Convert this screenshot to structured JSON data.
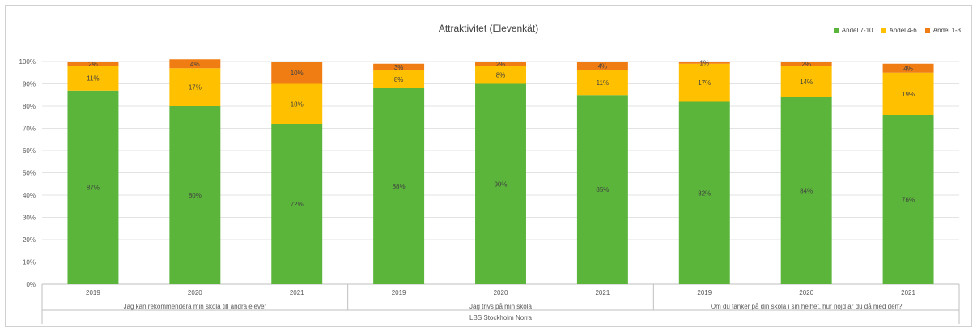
{
  "chart_data": {
    "type": "bar",
    "stacked": true,
    "title": "Attraktivitet (Elevenkät)",
    "xlabel": "",
    "ylabel": "",
    "ylim": [
      0,
      100
    ],
    "yticks": [
      "0%",
      "10%",
      "20%",
      "30%",
      "40%",
      "50%",
      "60%",
      "70%",
      "80%",
      "90%",
      "100%"
    ],
    "grid": true,
    "legend_position": "top-right",
    "categories": [
      "2019",
      "2020",
      "2021",
      "2019",
      "2020",
      "2021",
      "2019",
      "2020",
      "2021"
    ],
    "groups": [
      "Jag kan rekommendera min skola till andra elever",
      "Jag trivs på min skola",
      "Om du tänker på din skola i sin helhet, hur nöjd är du då med den?"
    ],
    "outer_label": "LBS Stockholm Norra",
    "series": [
      {
        "name": "Andel 7-10",
        "color": "#5bb53b",
        "values": [
          87,
          80,
          72,
          88,
          90,
          85,
          82,
          84,
          76
        ],
        "labels": [
          "87%",
          "80%",
          "72%",
          "88%",
          "90%",
          "85%",
          "82%",
          "84%",
          "76%"
        ]
      },
      {
        "name": "Andel 4-6",
        "color": "#ffc000",
        "values": [
          11,
          17,
          18,
          8,
          8,
          11,
          17,
          14,
          19
        ],
        "labels": [
          "11%",
          "17%",
          "18%",
          "8%",
          "8%",
          "11%",
          "17%",
          "14%",
          "19%"
        ]
      },
      {
        "name": "Andel 1-3",
        "color": "#f07d14",
        "values": [
          2,
          4,
          10,
          3,
          2,
          4,
          1,
          2,
          4
        ],
        "labels": [
          "2%",
          "4%",
          "10%",
          "3%",
          "2%",
          "4%",
          "1%",
          "2%",
          "4%"
        ]
      }
    ]
  }
}
